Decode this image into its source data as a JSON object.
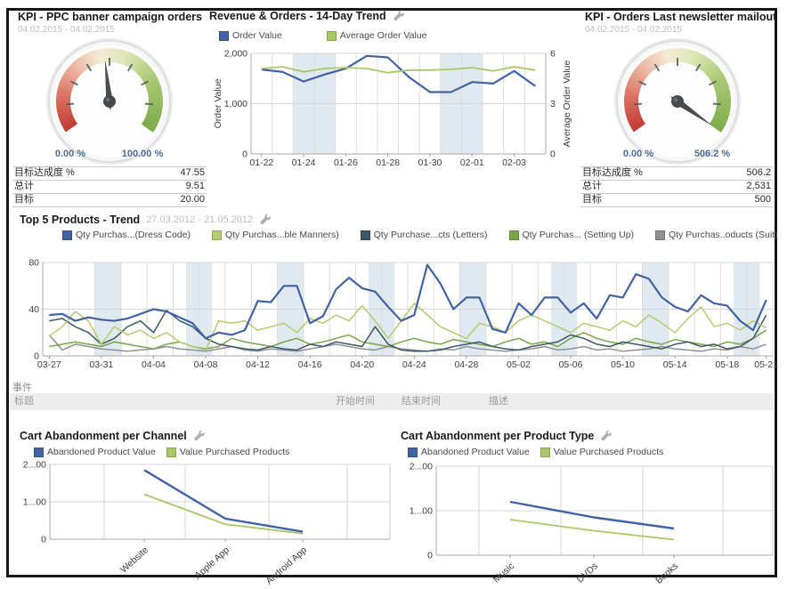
{
  "dashboard": {
    "kpi_left": {
      "title": "KPI - PPC banner campaign orders",
      "date_range": "04.02.2015 - 04.02.2015",
      "gauge": {
        "min_label": "0.00 %",
        "max_label": "100.00 %",
        "value_pct": 47.55
      },
      "rows": [
        {
          "label": "目标达成度 %",
          "value": "47.55"
        },
        {
          "label": "总计",
          "value": "9.51"
        },
        {
          "label": "目标",
          "value": "20.00"
        }
      ]
    },
    "kpi_right": {
      "title": "KPI - Orders Last newsletter mailout",
      "date_range": "04.02.2015 - 04.02.2015",
      "gauge": {
        "min_label": "0.00 %",
        "max_label": "506.2 %",
        "value_pct": 100
      },
      "rows": [
        {
          "label": "目标达成度 %",
          "value": "506.2"
        },
        {
          "label": "总计",
          "value": "2,531"
        },
        {
          "label": "目标",
          "value": "500"
        }
      ]
    },
    "events": {
      "section_label": "事件",
      "columns": [
        "标题",
        "开始时间",
        "结束时间",
        "描述"
      ]
    }
  },
  "colors": {
    "weekend_band": "#e0e9f0",
    "gauge_stops": [
      [
        0,
        "#c23b33"
      ],
      [
        0.15,
        "#d96a5c"
      ],
      [
        0.3,
        "#ecaf9d"
      ],
      [
        0.45,
        "#f3ead6"
      ],
      [
        0.58,
        "#dde7b6"
      ],
      [
        0.75,
        "#a9c873"
      ],
      [
        1,
        "#7cad49"
      ]
    ]
  },
  "chart_data": [
    {
      "id": "revenue_orders",
      "type": "line",
      "title": "Revenue & Orders - 14-Day Trend",
      "x": [
        "01-22",
        "01-23",
        "01-24",
        "01-25",
        "01-26",
        "01-27",
        "01-28",
        "01-29",
        "01-30",
        "01-31",
        "02-01",
        "02-02",
        "02-03",
        "02-04"
      ],
      "xticks": [
        {
          "i": 0,
          "label": "01-22"
        },
        {
          "i": 2,
          "label": "01-24"
        },
        {
          "i": 4,
          "label": "01-26"
        },
        {
          "i": 6,
          "label": "01-28"
        },
        {
          "i": 8,
          "label": "01-30"
        },
        {
          "i": 10,
          "label": "02-01"
        },
        {
          "i": 12,
          "label": "02-03"
        }
      ],
      "ylabel_left": "Order Value",
      "ylabel_right": "Average Order Value",
      "ylim_left": [
        0,
        2000
      ],
      "yticks_left": [
        {
          "v": 0,
          "label": "0"
        },
        {
          "v": 1000,
          "label": "1,000"
        },
        {
          "v": 2000,
          "label": "2,000"
        }
      ],
      "ylim_right": [
        0,
        6
      ],
      "yticks_right": [
        {
          "v": 0,
          "label": "0"
        },
        {
          "v": 3,
          "label": "3"
        },
        {
          "v": 6,
          "label": "6"
        }
      ],
      "weekend_bands": [
        [
          2,
          2
        ],
        [
          9,
          2
        ]
      ],
      "grid": true,
      "legend_position": "top",
      "series": [
        {
          "name": "Order Value",
          "axis": "left",
          "color": "#4063a3",
          "values": [
            1680,
            1630,
            1440,
            1580,
            1700,
            1950,
            1920,
            1530,
            1230,
            1230,
            1430,
            1400,
            1650,
            1350
          ]
        },
        {
          "name": "Average Order Value",
          "axis": "right",
          "color": "#a9c766",
          "values": [
            5.1,
            5.2,
            4.9,
            5.1,
            5.15,
            5.1,
            4.85,
            5.0,
            5.0,
            5.05,
            5.15,
            4.95,
            5.2,
            5.0
          ]
        }
      ]
    },
    {
      "id": "top5_products_trend",
      "type": "line",
      "title": "Top 5 Products - Trend",
      "subtitle": "27.03.2012 - 21.05.2012",
      "xticks": [
        {
          "i": 0,
          "label": "03-27"
        },
        {
          "i": 4,
          "label": "03-31"
        },
        {
          "i": 8,
          "label": "04-04"
        },
        {
          "i": 12,
          "label": "04-08"
        },
        {
          "i": 16,
          "label": "04-12"
        },
        {
          "i": 20,
          "label": "04-16"
        },
        {
          "i": 24,
          "label": "04-20"
        },
        {
          "i": 28,
          "label": "04-24"
        },
        {
          "i": 32,
          "label": "04-28"
        },
        {
          "i": 36,
          "label": "05-02"
        },
        {
          "i": 40,
          "label": "05-06"
        },
        {
          "i": 44,
          "label": "05-10"
        },
        {
          "i": 48,
          "label": "05-14"
        },
        {
          "i": 52,
          "label": "05-18"
        },
        {
          "i": 55,
          "label": "05-21"
        }
      ],
      "ylim": [
        0,
        80
      ],
      "yticks": [
        {
          "v": 0,
          "label": "0"
        },
        {
          "v": 40,
          "label": "40"
        },
        {
          "v": 80,
          "label": "80"
        }
      ],
      "weekend_bands": [
        [
          4,
          2
        ],
        [
          11,
          2
        ],
        [
          18,
          2
        ],
        [
          25,
          2
        ],
        [
          32,
          2
        ],
        [
          39,
          2
        ],
        [
          46,
          2
        ],
        [
          53,
          2
        ]
      ],
      "grid": true,
      "legend_position": "top",
      "series": [
        {
          "name": "Qty Purchas...(Dress Code)",
          "color": "#4063a3",
          "values": [
            35,
            36,
            30,
            33,
            31,
            30,
            32,
            36,
            40,
            38,
            33,
            28,
            15,
            20,
            18,
            22,
            47,
            46,
            60,
            60,
            28,
            34,
            57,
            67,
            58,
            55,
            42,
            30,
            35,
            78,
            62,
            40,
            50,
            50,
            23,
            20,
            45,
            35,
            50,
            50,
            37,
            45,
            32,
            52,
            50,
            70,
            66,
            50,
            42,
            38,
            52,
            45,
            43,
            30,
            22,
            48
          ]
        },
        {
          "name": "Qty Purchas...ble Manners)",
          "color": "#b6ca6e",
          "values": [
            17,
            25,
            38,
            30,
            10,
            25,
            18,
            22,
            15,
            20,
            12,
            8,
            5,
            30,
            28,
            30,
            22,
            25,
            28,
            20,
            32,
            28,
            35,
            30,
            43,
            30,
            15,
            30,
            45,
            35,
            25,
            20,
            15,
            28,
            25,
            20,
            30,
            35,
            30,
            25,
            20,
            28,
            25,
            22,
            30,
            25,
            35,
            28,
            20,
            32,
            42,
            25,
            28,
            22,
            30,
            24
          ]
        },
        {
          "name": "Qty Purchase...cts (Letters)",
          "color": "#3a5867",
          "values": [
            30,
            32,
            25,
            20,
            10,
            15,
            25,
            30,
            20,
            39,
            30,
            25,
            15,
            10,
            8,
            6,
            5,
            8,
            6,
            5,
            10,
            8,
            12,
            10,
            8,
            25,
            10,
            5,
            4,
            4,
            5,
            8,
            10,
            12,
            8,
            6,
            5,
            8,
            10,
            12,
            18,
            15,
            10,
            8,
            12,
            10,
            8,
            6,
            10,
            12,
            8,
            10,
            6,
            8,
            15,
            35
          ]
        },
        {
          "name": "Qty Purchas... (Setting Up)",
          "color": "#77a649",
          "values": [
            8,
            10,
            12,
            10,
            8,
            12,
            10,
            8,
            6,
            10,
            12,
            8,
            6,
            8,
            15,
            12,
            10,
            8,
            12,
            15,
            10,
            12,
            15,
            18,
            12,
            10,
            8,
            12,
            15,
            12,
            10,
            14,
            12,
            10,
            8,
            12,
            15,
            10,
            12,
            8,
            15,
            20,
            15,
            12,
            10,
            15,
            12,
            10,
            14,
            12,
            10,
            8,
            12,
            10,
            15,
            22
          ]
        },
        {
          "name": "Qty Purchas..oducts (Suit)",
          "color": "#8f9193",
          "values": [
            18,
            5,
            10,
            8,
            6,
            5,
            4,
            5,
            6,
            8,
            6,
            5,
            4,
            6,
            8,
            5,
            4,
            6,
            5,
            4,
            6,
            8,
            10,
            8,
            6,
            5,
            8,
            6,
            5,
            4,
            6,
            5,
            8,
            6,
            5,
            4,
            5,
            6,
            8,
            5,
            6,
            8,
            5,
            6,
            4,
            5,
            6,
            8,
            6,
            5,
            4,
            6,
            5,
            8,
            6,
            10
          ]
        }
      ]
    },
    {
      "id": "cart_abandonment_channel",
      "type": "line",
      "title": "Cart Abandonment per Channel",
      "categories": [
        "Website",
        "Apple App",
        "Android App"
      ],
      "ylim": [
        0,
        2000
      ],
      "yticks": [
        {
          "v": 0,
          "label": "0"
        },
        {
          "v": 1000,
          "label": "1...00"
        },
        {
          "v": 2000,
          "label": "2...00"
        }
      ],
      "grid": true,
      "legend_position": "top",
      "series": [
        {
          "name": "Abandoned Product Value",
          "color": "#4063a3",
          "values": [
            1850,
            550,
            200
          ]
        },
        {
          "name": "Value Purchased Products",
          "color": "#a9c766",
          "values": [
            1200,
            400,
            150
          ]
        }
      ]
    },
    {
      "id": "cart_abandonment_product_type",
      "type": "line",
      "title": "Cart Abandonment per Product Type",
      "categories": [
        "Music",
        "DVDs",
        "Books"
      ],
      "ylim": [
        0,
        2000
      ],
      "yticks": [
        {
          "v": 0,
          "label": "0"
        },
        {
          "v": 1000,
          "label": "1...00"
        },
        {
          "v": 2000,
          "label": "2...00"
        }
      ],
      "grid": true,
      "legend_position": "top",
      "series": [
        {
          "name": "Abandoned Product Value",
          "color": "#4063a3",
          "values": [
            1200,
            850,
            600
          ]
        },
        {
          "name": "Value Purchased Products",
          "color": "#a9c766",
          "values": [
            800,
            550,
            350
          ]
        }
      ]
    }
  ]
}
